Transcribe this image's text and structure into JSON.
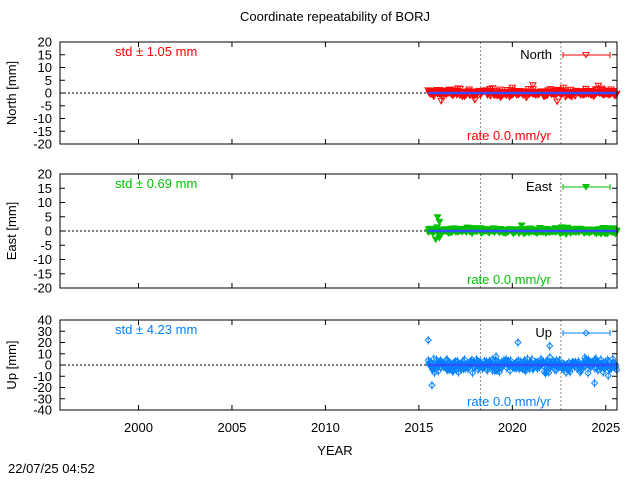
{
  "title": "Coordinate repeatability of BORJ",
  "xlabel": "YEAR",
  "timestamp": "22/07/25 04:52",
  "chart_data": {
    "type": "scatter",
    "title": "Coordinate repeatability of BORJ",
    "xlabel": "YEAR",
    "xlim": [
      1995.8,
      2025.6
    ],
    "x_ticks": [
      2000,
      2005,
      2010,
      2015,
      2020,
      2025
    ],
    "vlines": [
      2018.3,
      2022.6
    ],
    "panels": [
      {
        "name": "North",
        "ylabel": "North [mm]",
        "ylim": [
          -20,
          20
        ],
        "y_ticks": [
          -20,
          -15,
          -10,
          -5,
          0,
          5,
          10,
          15,
          20
        ],
        "std_label": "std ± 1.05 mm",
        "rate_label": "rate  0.0 mm/yr",
        "legend": "North",
        "marker": "triangle-down-open",
        "color": "#ff0000",
        "data_start": 2015.5,
        "data_end": 2025.6,
        "std": 1.05,
        "err": 1.0,
        "rate": 0.0,
        "outliers": [
          [
            2016.2,
            -3.2
          ],
          [
            2018.0,
            -2.8
          ],
          [
            2021.1,
            3.0
          ],
          [
            2022.4,
            -3.4
          ],
          [
            2024.6,
            2.8
          ]
        ]
      },
      {
        "name": "East",
        "ylabel": "East [mm]",
        "ylim": [
          -20,
          20
        ],
        "y_ticks": [
          -20,
          -15,
          -10,
          -5,
          0,
          5,
          10,
          15,
          20
        ],
        "std_label": "std ± 0.69 mm",
        "rate_label": "rate  0.0 mm/yr",
        "legend": "East",
        "marker": "triangle-down-filled",
        "color": "#00c000",
        "data_start": 2015.5,
        "data_end": 2025.6,
        "std": 0.69,
        "err": 1.0,
        "rate": 0.0,
        "outliers": [
          [
            2016.0,
            4.8
          ],
          [
            2016.1,
            3.2
          ],
          [
            2015.9,
            -3.0
          ],
          [
            2016.1,
            -2.4
          ],
          [
            2020.5,
            1.9
          ]
        ]
      },
      {
        "name": "Up",
        "ylabel": "Up [mm]",
        "ylim": [
          -40,
          40
        ],
        "y_ticks": [
          -40,
          -30,
          -20,
          -10,
          0,
          10,
          20,
          30,
          40
        ],
        "std_label": "std ± 4.23 mm",
        "rate_label": "rate  0.0 mm/yr",
        "legend": "Up",
        "marker": "diamond-open",
        "color": "#0080ff",
        "data_start": 2015.5,
        "data_end": 2025.6,
        "std": 4.23,
        "err": 4.0,
        "rate": 0.0,
        "outliers": [
          [
            2015.5,
            22
          ],
          [
            2015.7,
            -18
          ],
          [
            2020.3,
            20
          ],
          [
            2022.0,
            17
          ],
          [
            2024.4,
            -16
          ]
        ]
      }
    ]
  }
}
